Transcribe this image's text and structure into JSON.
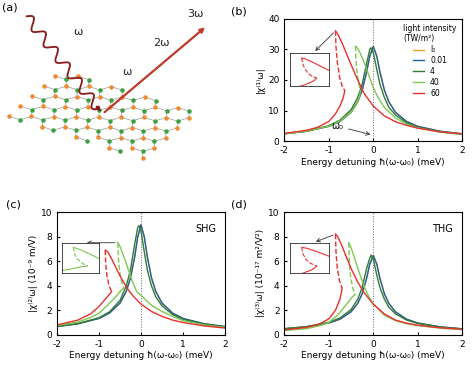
{
  "diagram": {
    "label": "(a)",
    "incoming_beam": "ω",
    "outgoing_beams": [
      "ω",
      "2ω",
      "3ω"
    ]
  },
  "chart_data": [
    {
      "type": "line",
      "panel_label": "(b)",
      "ylabel": "|χ⁽¹⁾ω|",
      "xlabel": "Energy detuning ħ(ω-ω₀) (meV)",
      "xlim": [
        -2,
        2
      ],
      "xticks": [
        -2,
        -1,
        0,
        1,
        2
      ],
      "ylim": [
        0,
        40
      ],
      "yticks": [
        0,
        10,
        20,
        30,
        40
      ],
      "legend": "upper right",
      "legend_title": "light intensity\n(TW/m²)",
      "annotations": [
        {
          "text": "ω₀",
          "x": 0
        }
      ],
      "reference_line_x": 0,
      "inset_series": 4,
      "series": [
        {
          "name": "I₀",
          "color": "#f5a020",
          "x": [
            -2,
            -1.5,
            -1,
            -0.75,
            -0.5,
            -0.35,
            -0.25,
            -0.15,
            -0.08,
            0,
            0.08,
            0.15,
            0.25,
            0.35,
            0.5,
            0.75,
            1,
            1.5,
            2
          ],
          "values": [
            2.47,
            3.29,
            4.9,
            6.47,
            9.45,
            12.9,
            16.7,
            22.6,
            27.7,
            31,
            27.7,
            22.6,
            16.7,
            12.9,
            9.45,
            6.47,
            4.9,
            3.29,
            2.47
          ]
        },
        {
          "name": "0.01",
          "color": "#1f5fa8",
          "x": [
            -2,
            -1.5,
            -1,
            -0.75,
            -0.5,
            -0.35,
            -0.25,
            -0.15,
            -0.08,
            0,
            0.08,
            0.15,
            0.25,
            0.35,
            0.5,
            0.75,
            1,
            1.5,
            2
          ],
          "values": [
            2.47,
            3.29,
            4.9,
            6.47,
            9.45,
            12.9,
            16.7,
            22.6,
            27.7,
            30.9,
            27.7,
            22.6,
            16.7,
            12.9,
            9.45,
            6.47,
            4.9,
            3.29,
            2.47
          ]
        },
        {
          "name": "4",
          "color": "#2e7d32",
          "x": [
            -2,
            -1.5,
            -1,
            -0.75,
            -0.5,
            -0.35,
            -0.25,
            -0.15,
            -0.08,
            -0.05,
            0,
            0.08,
            0.15,
            0.25,
            0.35,
            0.5,
            0.75,
            1,
            1.5,
            2
          ],
          "values": [
            2.5,
            3.37,
            5.1,
            6.9,
            10.3,
            14.3,
            18.6,
            25.4,
            29.9,
            30.5,
            28.9,
            23.4,
            18.6,
            14.3,
            11.1,
            8.6,
            6.0,
            4.6,
            3.1,
            2.4
          ]
        },
        {
          "name": "40",
          "color": "#7ec850",
          "x": [
            -2,
            -1.5,
            -1,
            -0.75,
            -0.5,
            -0.4,
            -0.32,
            -0.29,
            null,
            -0.4,
            -0.37,
            -0.3,
            -0.2,
            -0.1,
            0,
            0.1,
            0.25,
            0.5,
            0.75,
            1,
            1.5,
            2
          ],
          "values": [
            2.5,
            3.3,
            5.0,
            6.6,
            9.5,
            11.5,
            14.0,
            16.5,
            null,
            31,
            30.7,
            29,
            25.5,
            21.5,
            17.5,
            14.5,
            11,
            7.6,
            5.6,
            4.4,
            3.0,
            2.3
          ],
          "unstable": {
            "line_style": "dashed",
            "x": [
              -0.4,
              -0.39,
              -0.37,
              -0.33,
              -0.29
            ],
            "values": [
              31,
              27,
              23,
              19,
              16.5
            ]
          }
        },
        {
          "name": "60",
          "color": "#e8312f",
          "x": [
            -2,
            -1.5,
            -1.25,
            -1,
            -0.85,
            -0.75,
            -0.68,
            -0.64,
            null,
            -0.85,
            -0.8,
            -0.7,
            -0.6,
            -0.5,
            -0.35,
            -0.2,
            0,
            0.25,
            0.5,
            0.75,
            1,
            1.5,
            2
          ],
          "values": [
            2.6,
            3.6,
            4.6,
            6.5,
            9,
            11.5,
            14,
            16.5,
            null,
            36,
            35,
            32,
            28.5,
            25,
            20,
            15.5,
            11.5,
            8.3,
            6.4,
            5.2,
            4.3,
            3.1,
            2.4
          ],
          "unstable": {
            "line_style": "dashed",
            "x": [
              -0.85,
              -0.84,
              -0.81,
              -0.76,
              -0.7,
              -0.64
            ],
            "values": [
              36,
              31,
              26,
              21,
              18,
              16.5
            ]
          }
        }
      ]
    },
    {
      "type": "line",
      "panel_label": "(c)",
      "ylabel": "|χ⁽²⁾ω| (10⁻⁹ m/V)",
      "xlabel": "Energy detuning ħ(ω-ω₀) (meV)",
      "xlim": [
        -2,
        2
      ],
      "xticks": [
        -2,
        -1,
        0,
        1,
        2
      ],
      "ylim": [
        0,
        10
      ],
      "yticks": [
        0,
        2,
        4,
        6,
        8,
        10
      ],
      "annotations": [
        {
          "text": "SHG"
        }
      ],
      "reference_line_x": 0,
      "inset_series": 3,
      "series": [
        {
          "color": "#f5a020",
          "x": [
            -2,
            -1.5,
            -1,
            -0.75,
            -0.5,
            -0.35,
            -0.25,
            -0.15,
            -0.08,
            0,
            0.08,
            0.15,
            0.25,
            0.35,
            0.5,
            0.75,
            1,
            1.5,
            2
          ],
          "values": [
            0.67,
            0.9,
            1.33,
            1.77,
            2.58,
            3.54,
            4.63,
            6.36,
            7.94,
            9,
            7.94,
            6.36,
            4.63,
            3.54,
            2.58,
            1.77,
            1.33,
            0.9,
            0.67
          ]
        },
        {
          "color": "#1f5fa8",
          "x": [
            -2,
            -1.5,
            -1,
            -0.75,
            -0.5,
            -0.35,
            -0.25,
            -0.15,
            -0.08,
            0,
            0.08,
            0.15,
            0.25,
            0.35,
            0.5,
            0.75,
            1,
            1.5,
            2
          ],
          "values": [
            0.67,
            0.9,
            1.33,
            1.77,
            2.58,
            3.54,
            4.63,
            6.36,
            7.94,
            8.95,
            7.94,
            6.36,
            4.63,
            3.54,
            2.58,
            1.77,
            1.33,
            0.9,
            0.67
          ]
        },
        {
          "color": "#2e7d32",
          "x": [
            -2,
            -1.5,
            -1,
            -0.75,
            -0.5,
            -0.35,
            -0.25,
            -0.15,
            -0.08,
            -0.05,
            0,
            0.08,
            0.15,
            0.25,
            0.35,
            0.5,
            0.75,
            1,
            1.5,
            2
          ],
          "values": [
            0.68,
            0.91,
            1.39,
            1.87,
            2.8,
            3.97,
            5.3,
            7.4,
            8.7,
            8.9,
            8.45,
            6.7,
            5.3,
            3.97,
            3.1,
            2.35,
            1.65,
            1.26,
            0.86,
            0.65
          ]
        },
        {
          "color": "#7ec850",
          "x": [
            -2,
            -1.5,
            -1.2,
            -1,
            -0.8,
            -0.6,
            -0.48,
            -0.41,
            null,
            -0.55,
            -0.5,
            -0.4,
            -0.3,
            -0.2,
            -0.1,
            0,
            0.25,
            0.5,
            0.75,
            1,
            1.5,
            2
          ],
          "values": [
            0.75,
            1.05,
            1.4,
            1.75,
            2.4,
            3.1,
            3.6,
            3.8,
            null,
            7.5,
            7.2,
            6.3,
            5.3,
            4.3,
            3.5,
            3.2,
            2.4,
            1.9,
            1.5,
            1.15,
            0.8,
            0.6
          ],
          "unstable": {
            "line_style": "dashed",
            "x": [
              -0.55,
              -0.54,
              -0.51,
              -0.46,
              -0.41
            ],
            "values": [
              7.5,
              6.3,
              5.2,
              4.3,
              3.8
            ]
          }
        },
        {
          "color": "#e8312f",
          "x": [
            -2,
            -1.5,
            -1.2,
            -1,
            -0.85,
            -0.75,
            -0.7,
            null,
            -0.85,
            -0.8,
            -0.7,
            -0.6,
            -0.5,
            -0.35,
            -0.2,
            0,
            0.25,
            0.5,
            0.75,
            1,
            1.5,
            2
          ],
          "values": [
            0.8,
            1.2,
            1.7,
            2.3,
            2.9,
            3.3,
            3.5,
            null,
            6.9,
            6.8,
            6.2,
            5.5,
            4.8,
            3.9,
            3.2,
            2.5,
            1.9,
            1.5,
            1.2,
            1.0,
            0.72,
            0.55
          ],
          "unstable": {
            "line_style": "dashed",
            "x": [
              -0.85,
              -0.84,
              -0.81,
              -0.76,
              -0.7
            ],
            "values": [
              6.9,
              5.8,
              4.8,
              4.0,
              3.5
            ]
          }
        }
      ]
    },
    {
      "type": "line",
      "panel_label": "(d)",
      "ylabel": "|χ⁽³⁾ω| (10⁻¹⁷ m²/V²)",
      "xlabel": "Energy detuning ħ(ω-ω₀) (meV)",
      "xlim": [
        -2,
        2
      ],
      "xticks": [
        -2,
        -1,
        0,
        1,
        2
      ],
      "ylim": [
        0,
        10
      ],
      "yticks": [
        0,
        2,
        4,
        6,
        8,
        10
      ],
      "annotations": [
        {
          "text": "THG"
        }
      ],
      "reference_line_x": 0,
      "inset_series": 4,
      "series": [
        {
          "color": "#f5a020",
          "x": [
            -2,
            -1.5,
            -1,
            -0.75,
            -0.5,
            -0.35,
            -0.25,
            -0.15,
            -0.08,
            0,
            0.08,
            0.15,
            0.25,
            0.35,
            0.5,
            0.75,
            1,
            1.5,
            2
          ],
          "values": [
            0.49,
            0.65,
            0.96,
            1.27,
            1.87,
            2.56,
            3.34,
            4.6,
            5.74,
            6.5,
            5.74,
            4.6,
            3.34,
            2.56,
            1.87,
            1.27,
            0.96,
            0.65,
            0.49
          ]
        },
        {
          "color": "#1f5fa8",
          "x": [
            -2,
            -1.5,
            -1,
            -0.75,
            -0.5,
            -0.35,
            -0.25,
            -0.15,
            -0.08,
            0,
            0.08,
            0.15,
            0.25,
            0.35,
            0.5,
            0.75,
            1,
            1.5,
            2
          ],
          "values": [
            0.49,
            0.65,
            0.96,
            1.27,
            1.87,
            2.56,
            3.34,
            4.6,
            5.74,
            6.45,
            5.74,
            4.6,
            3.34,
            2.56,
            1.87,
            1.27,
            0.96,
            0.65,
            0.49
          ]
        },
        {
          "color": "#2e7d32",
          "x": [
            -2,
            -1.5,
            -1,
            -0.75,
            -0.5,
            -0.35,
            -0.25,
            -0.15,
            -0.08,
            -0.05,
            0,
            0.08,
            0.15,
            0.25,
            0.35,
            0.5,
            0.75,
            1,
            1.5,
            2
          ],
          "values": [
            0.5,
            0.67,
            1.02,
            1.37,
            2.05,
            2.9,
            3.85,
            5.4,
            6.23,
            6.5,
            6.17,
            4.86,
            3.85,
            2.9,
            2.24,
            1.71,
            1.2,
            0.92,
            0.63,
            0.47
          ]
        },
        {
          "color": "#7ec850",
          "x": [
            -2,
            -1.5,
            -1.2,
            -1,
            -0.8,
            -0.6,
            -0.48,
            -0.41,
            null,
            -0.55,
            -0.5,
            -0.4,
            -0.3,
            -0.2,
            -0.1,
            0,
            0.25,
            0.5,
            0.75,
            1,
            1.5,
            2
          ],
          "values": [
            0.35,
            0.5,
            0.75,
            1.0,
            1.6,
            2.5,
            3.05,
            3.3,
            null,
            7.5,
            7.1,
            6.0,
            4.9,
            3.9,
            3.1,
            2.5,
            1.6,
            1.15,
            0.9,
            0.75,
            0.55,
            0.42
          ],
          "unstable": {
            "line_style": "dashed",
            "x": [
              -0.55,
              -0.54,
              -0.51,
              -0.46,
              -0.41
            ],
            "values": [
              7.5,
              6.0,
              4.7,
              3.8,
              3.3
            ]
          }
        },
        {
          "color": "#e8312f",
          "x": [
            -2,
            -1.5,
            -1.2,
            -1,
            -0.85,
            -0.75,
            -0.72,
            -0.7,
            null,
            -0.85,
            -0.8,
            -0.7,
            -0.6,
            -0.5,
            -0.35,
            -0.2,
            0,
            0.25,
            0.5,
            0.75,
            1,
            1.5,
            2
          ],
          "values": [
            0.4,
            0.6,
            0.9,
            1.3,
            2.0,
            2.9,
            3.4,
            3.8,
            null,
            8.2,
            8.0,
            7.2,
            6.3,
            5.4,
            4.3,
            3.4,
            2.5,
            1.7,
            1.2,
            0.95,
            0.78,
            0.57,
            0.45
          ],
          "unstable": {
            "line_style": "dashed",
            "x": [
              -0.85,
              -0.84,
              -0.81,
              -0.76,
              -0.7
            ],
            "values": [
              8.2,
              6.8,
              5.4,
              4.4,
              3.8
            ]
          }
        }
      ]
    }
  ]
}
